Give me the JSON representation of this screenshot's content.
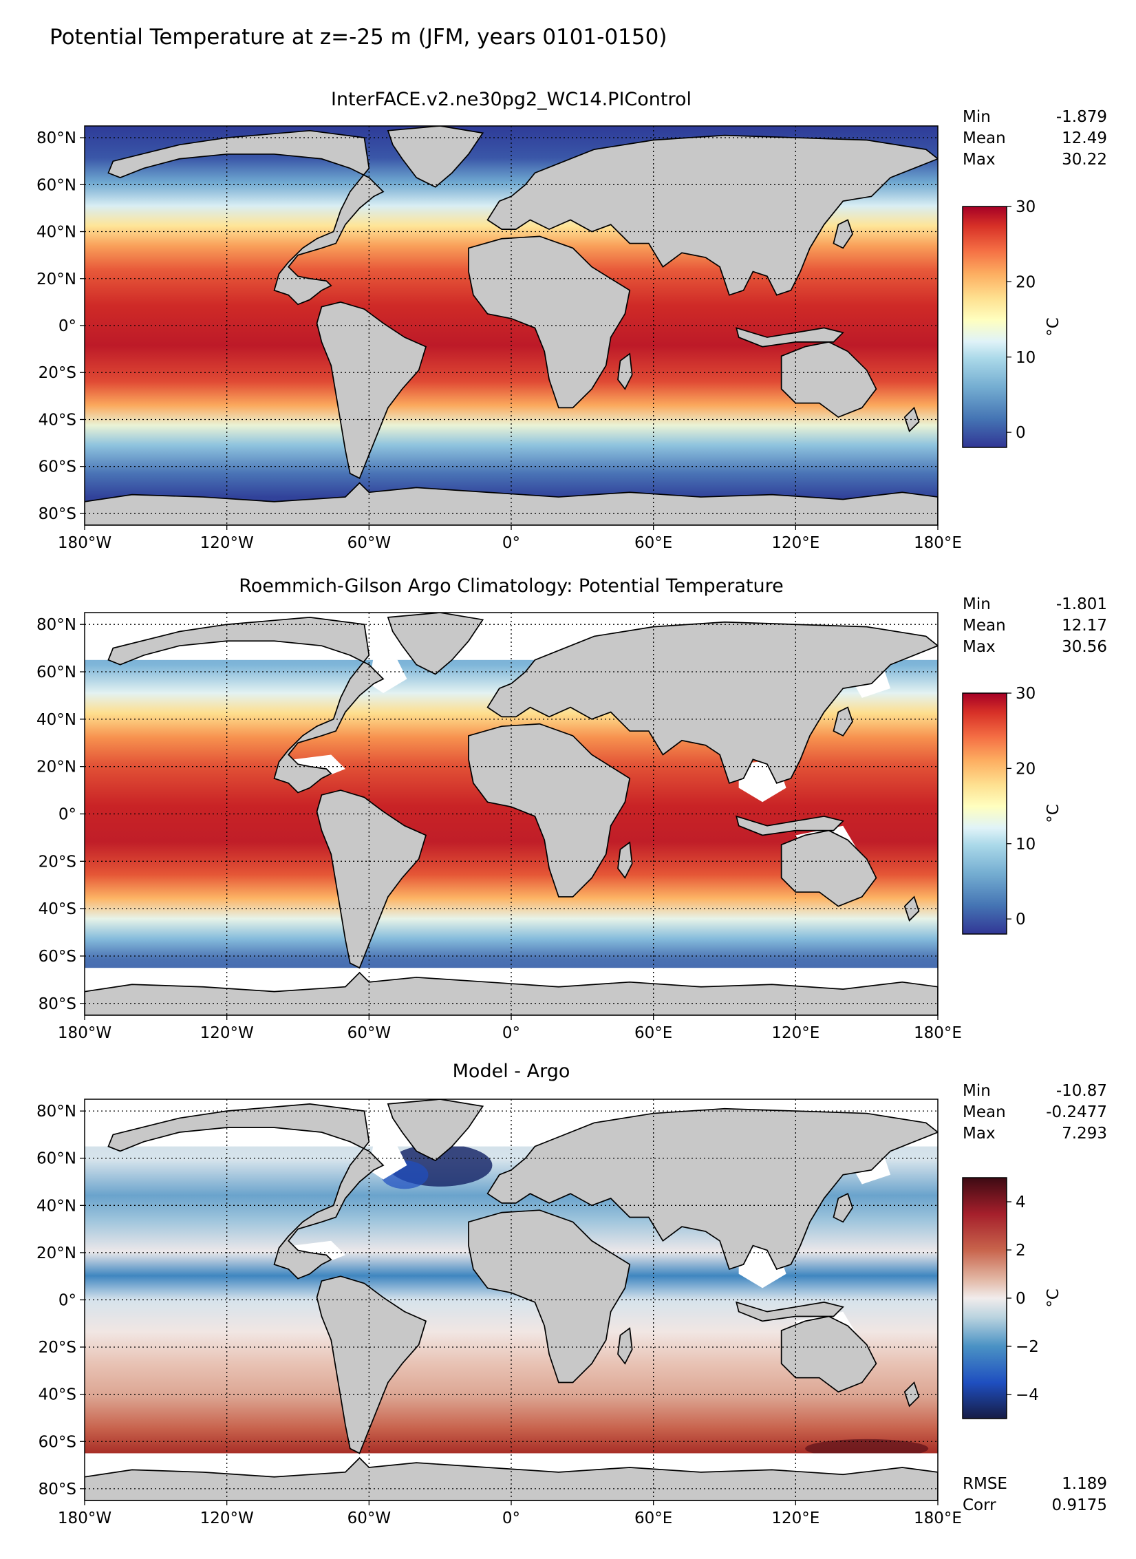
{
  "figure": {
    "title": "Potential Temperature at z=-25 m (JFM, years 0101-0150)",
    "colors": {
      "land": "#c8c8c8",
      "nodata": "#ffffff",
      "grid": "#000000"
    }
  },
  "axes": {
    "x_ticks": [
      "180°W",
      "120°W",
      "60°W",
      "0°",
      "60°E",
      "120°E",
      "180°E"
    ],
    "y_ticks": [
      "80°N",
      "60°N",
      "40°N",
      "20°N",
      "0°",
      "20°S",
      "40°S",
      "60°S",
      "80°S"
    ]
  },
  "panels": [
    {
      "title": "InterFACE.v2.ne30pg2_WC14.PIControl",
      "stats": [
        {
          "label": "Min",
          "value": "-1.879"
        },
        {
          "label": "Mean",
          "value": "12.49"
        },
        {
          "label": "Max",
          "value": "30.22"
        }
      ],
      "colorbar": {
        "ticks": [
          "30",
          "20",
          "10",
          "0"
        ],
        "tick_values": [
          30,
          20,
          10,
          0
        ],
        "range": [
          -2,
          30
        ],
        "unit": "°C",
        "cmap": "RdYlBu_r"
      }
    },
    {
      "title": "Roemmich-Gilson Argo Climatology: Potential Temperature",
      "stats": [
        {
          "label": "Min",
          "value": "-1.801"
        },
        {
          "label": "Mean",
          "value": "12.17"
        },
        {
          "label": "Max",
          "value": "30.56"
        }
      ],
      "colorbar": {
        "ticks": [
          "30",
          "20",
          "10",
          "0"
        ],
        "tick_values": [
          30,
          20,
          10,
          0
        ],
        "range": [
          -2,
          30
        ],
        "unit": "°C",
        "cmap": "RdYlBu_r"
      }
    },
    {
      "title": "Model - Argo",
      "stats": [
        {
          "label": "Min",
          "value": "-10.87"
        },
        {
          "label": "Mean",
          "value": "-0.2477"
        },
        {
          "label": "Max",
          "value": "7.293"
        }
      ],
      "colorbar": {
        "ticks": [
          "4",
          "2",
          "0",
          "−2",
          "−4"
        ],
        "tick_values": [
          4,
          2,
          0,
          -2,
          -4
        ],
        "range": [
          -5,
          5
        ],
        "unit": "°C",
        "cmap": "balance"
      },
      "metrics": [
        {
          "label": "RMSE",
          "value": "1.189"
        },
        {
          "label": "Corr",
          "value": "0.9175"
        }
      ]
    }
  ]
}
